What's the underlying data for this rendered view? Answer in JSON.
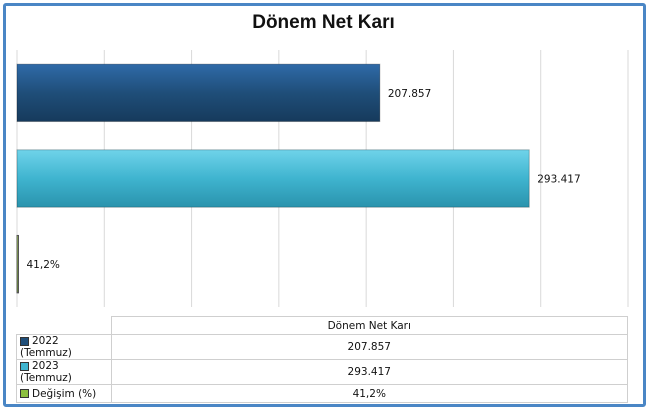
{
  "chart_data": {
    "type": "bar",
    "orientation": "horizontal",
    "title": "Dönem Net Karı",
    "categories": [
      "2022 (Temmuz)",
      "2023 (Temmuz)",
      "Değişim (%)"
    ],
    "values": [
      207857,
      293417,
      41.2
    ],
    "data_labels": [
      "207.857",
      "293.417",
      "41,2%"
    ],
    "series_name": "Dönem Net Karı",
    "colors": [
      "#1f4e79",
      "#3fb4cf",
      "#8cbf3f"
    ],
    "xlim": [
      0,
      350000
    ],
    "grid": true,
    "legend": "data-table-below"
  },
  "table": {
    "header": "Dönem Net Karı",
    "rows": [
      {
        "label": "2022 (Temmuz)",
        "value": "207.857"
      },
      {
        "label": "2023 (Temmuz)",
        "value": "293.417"
      },
      {
        "label": "Değişim (%)",
        "value": "41,2%"
      }
    ]
  }
}
